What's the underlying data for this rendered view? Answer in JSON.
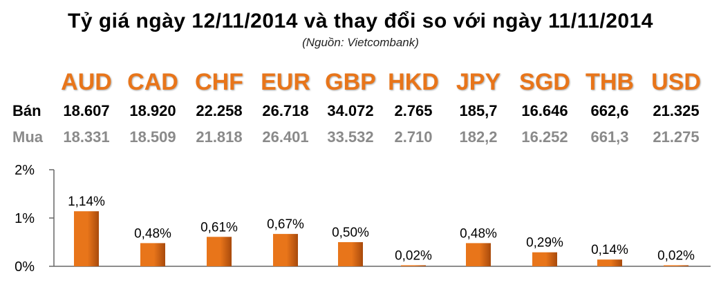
{
  "title": "Tỷ giá ngày 12/11/2014 và thay đổi so với ngày 11/11/2014",
  "source": "(Nguồn: Vietcombank)",
  "table": {
    "sell_label": "Bán",
    "buy_label": "Mua",
    "currencies": [
      {
        "code": "AUD",
        "sell": "18.607",
        "buy": "18.331"
      },
      {
        "code": "CAD",
        "sell": "18.920",
        "buy": "18.509"
      },
      {
        "code": "CHF",
        "sell": "22.258",
        "buy": "21.818"
      },
      {
        "code": "EUR",
        "sell": "26.718",
        "buy": "26.401"
      },
      {
        "code": "GBP",
        "sell": "34.072",
        "buy": "33.532"
      },
      {
        "code": "HKD",
        "sell": "2.765",
        "buy": "2.710"
      },
      {
        "code": "JPY",
        "sell": "185,7",
        "buy": "182,2"
      },
      {
        "code": "SGD",
        "sell": "16.646",
        "buy": "16.252"
      },
      {
        "code": "THB",
        "sell": "662,6",
        "buy": "661,3"
      },
      {
        "code": "USD",
        "sell": "21.325",
        "buy": "21.275"
      }
    ]
  },
  "colors": {
    "code_orange": "#e8751a",
    "bar_fill": "#e8751a",
    "bar_dark": "#a84a0c",
    "buy_gray": "#8a8a8a"
  },
  "chart_data": {
    "type": "bar",
    "categories": [
      "AUD",
      "CAD",
      "CHF",
      "EUR",
      "GBP",
      "HKD",
      "JPY",
      "SGD",
      "THB",
      "USD"
    ],
    "values": [
      1.14,
      0.48,
      0.61,
      0.67,
      0.5,
      0.02,
      0.48,
      0.29,
      0.14,
      0.02
    ],
    "value_labels": [
      "1,14%",
      "0,48%",
      "0,61%",
      "0,67%",
      "0,50%",
      "0,02%",
      "0,48%",
      "0,29%",
      "0,14%",
      "0,02%"
    ],
    "yticks": [
      {
        "value": 0,
        "label": "0%"
      },
      {
        "value": 1,
        "label": "1%"
      },
      {
        "value": 2,
        "label": "2%"
      }
    ],
    "ylim": [
      0,
      2
    ],
    "grid": false
  }
}
